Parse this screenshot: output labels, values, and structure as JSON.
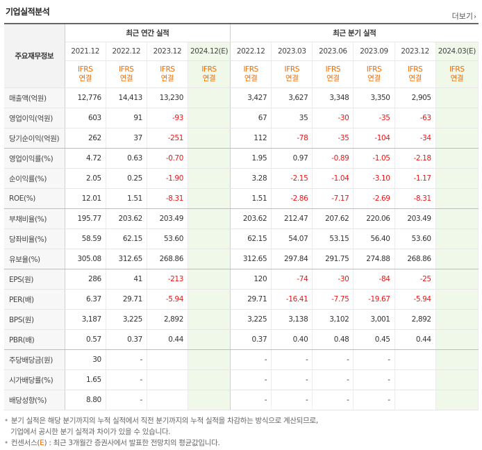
{
  "header": {
    "title": "기업실적분석",
    "more_label": "더보기",
    "more_icon": "chevron-right"
  },
  "groups": {
    "annual": "최근 연간 실적",
    "quarterly": "최근 분기 실적"
  },
  "row_header_label": "주요재무정보",
  "periods": [
    "2021.12",
    "2022.12",
    "2023.12",
    "2024.12(E)",
    "2022.12",
    "2023.03",
    "2023.06",
    "2023.09",
    "2023.12",
    "2024.03(E)"
  ],
  "ifrs": [
    "IFRS",
    "IFRS",
    "IFRS",
    "IFRS",
    "IFRS",
    "IFRS",
    "IFRS",
    "IFRS",
    "IFRS",
    "IFRS"
  ],
  "basis": [
    "연결",
    "연결",
    "연결",
    "연결",
    "연결",
    "연결",
    "연결",
    "연결",
    "연결",
    "연결"
  ],
  "colors": {
    "negative": "#e81616",
    "accent": "#f06b00",
    "estimate_bg": "#eff8e9"
  },
  "rows": [
    {
      "label": "매출액(억원)",
      "values": [
        "12,776",
        "14,413",
        "13,230",
        "",
        "3,427",
        "3,627",
        "3,348",
        "3,350",
        "2,905",
        ""
      ]
    },
    {
      "label": "영업이익(억원)",
      "values": [
        "603",
        "91",
        "-93",
        "",
        "67",
        "35",
        "-30",
        "-35",
        "-63",
        ""
      ]
    },
    {
      "label": "당기순이익(억원)",
      "values": [
        "262",
        "37",
        "-251",
        "",
        "112",
        "-78",
        "-35",
        "-104",
        "-34",
        ""
      ]
    },
    {
      "label": "영업이익률(%)",
      "values": [
        "4.72",
        "0.63",
        "-0.70",
        "",
        "1.95",
        "0.97",
        "-0.89",
        "-1.05",
        "-2.18",
        ""
      ]
    },
    {
      "label": "순이익률(%)",
      "values": [
        "2.05",
        "0.25",
        "-1.90",
        "",
        "3.28",
        "-2.15",
        "-1.04",
        "-3.10",
        "-1.17",
        ""
      ]
    },
    {
      "label": "ROE(%)",
      "values": [
        "12.01",
        "1.51",
        "-8.31",
        "",
        "1.51",
        "-2.86",
        "-7.17",
        "-2.69",
        "-8.31",
        ""
      ]
    },
    {
      "label": "부채비율(%)",
      "values": [
        "195.77",
        "203.62",
        "203.49",
        "",
        "203.62",
        "212.47",
        "207.62",
        "220.06",
        "203.49",
        ""
      ]
    },
    {
      "label": "당좌비율(%)",
      "values": [
        "58.59",
        "62.15",
        "53.60",
        "",
        "62.15",
        "54.07",
        "53.15",
        "56.40",
        "53.60",
        ""
      ]
    },
    {
      "label": "유보율(%)",
      "values": [
        "305.08",
        "312.65",
        "268.86",
        "",
        "312.65",
        "297.84",
        "291.75",
        "274.88",
        "268.86",
        ""
      ]
    },
    {
      "label": "EPS(원)",
      "values": [
        "286",
        "41",
        "-213",
        "",
        "120",
        "-74",
        "-30",
        "-84",
        "-25",
        ""
      ]
    },
    {
      "label": "PER(배)",
      "values": [
        "6.37",
        "29.71",
        "-5.94",
        "",
        "29.71",
        "-16.41",
        "-7.75",
        "-19.67",
        "-5.94",
        ""
      ]
    },
    {
      "label": "BPS(원)",
      "values": [
        "3,187",
        "3,225",
        "2,892",
        "",
        "3,225",
        "3,138",
        "3,102",
        "3,001",
        "2,892",
        ""
      ]
    },
    {
      "label": "PBR(배)",
      "values": [
        "0.57",
        "0.37",
        "0.44",
        "",
        "0.37",
        "0.40",
        "0.48",
        "0.45",
        "0.44",
        ""
      ]
    },
    {
      "label": "주당배당금(원)",
      "values": [
        "30",
        "-",
        "",
        "",
        "-",
        "-",
        "-",
        "-",
        "",
        ""
      ]
    },
    {
      "label": "시가배당률(%)",
      "values": [
        "1.65",
        "-",
        "",
        "",
        "-",
        "-",
        "-",
        "-",
        "",
        ""
      ]
    },
    {
      "label": "배당성향(%)",
      "values": [
        "8.80",
        "-",
        "",
        "",
        "-",
        "-",
        "-",
        "-",
        "",
        ""
      ]
    }
  ],
  "notes": {
    "line1": "분기 실적은 해당 분기까지의 누적 실적에서 직전 분기까지의 누적 실적을 차감하는 방식으로 계산되므로,",
    "line2": "기업에서 공시한 분기 실적과 차이가 있을 수 있습니다.",
    "line3_prefix": "컨센서스(",
    "line3_e": "E",
    "line3_suffix": ") : 최근 3개월간 증권사에서 발표한 전망치의 평균값입니다."
  }
}
